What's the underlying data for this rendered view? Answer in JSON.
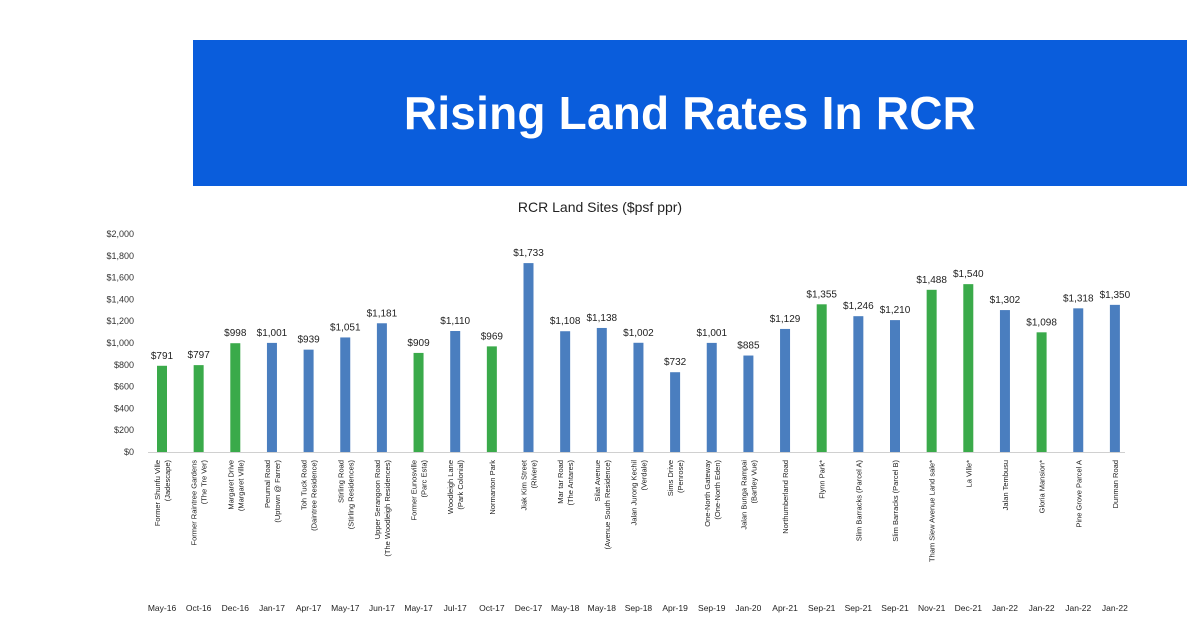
{
  "banner": {
    "title": "Rising Land Rates In RCR"
  },
  "chart_data": {
    "type": "bar",
    "title": "RCR Land Sites ($psf ppr)",
    "ylim": [
      0,
      2000
    ],
    "yticks": [
      "$0",
      "$200",
      "$400",
      "$600",
      "$800",
      "$1,000",
      "$1,200",
      "$1,400",
      "$1,600",
      "$1,800",
      "$2,000"
    ],
    "grid": false,
    "colors": {
      "blue": "#4a7ebf",
      "green": "#3aaa4a"
    },
    "bars": [
      {
        "name": "Former Shunfu Ville",
        "sub": "(Jadescape)",
        "date": "May-16",
        "value": 791,
        "label": "$791",
        "color": "green"
      },
      {
        "name": "Former Raintree Gardens",
        "sub": "(The Tre Ver)",
        "date": "Oct-16",
        "value": 797,
        "label": "$797",
        "color": "green"
      },
      {
        "name": "Margaret Drive",
        "sub": "(Margaret Ville)",
        "date": "Dec-16",
        "value": 998,
        "label": "$998",
        "color": "green"
      },
      {
        "name": "Perumal Road",
        "sub": "(Uptown @ Farrer)",
        "date": "Jan-17",
        "value": 1001,
        "label": "$1,001",
        "color": "blue"
      },
      {
        "name": "Toh Tuck Road",
        "sub": "(Daintree Residence)",
        "date": "Apr-17",
        "value": 939,
        "label": "$939",
        "color": "blue"
      },
      {
        "name": "Stirling Road",
        "sub": "(Stirling Residences)",
        "date": "May-17",
        "value": 1051,
        "label": "$1,051",
        "color": "blue"
      },
      {
        "name": "Upper Serangoon Road",
        "sub": "(The Woodleigh Residences)",
        "date": "Jun-17",
        "value": 1181,
        "label": "$1,181",
        "color": "blue"
      },
      {
        "name": "Former Eunosville",
        "sub": "(Parc Esta)",
        "date": "May-17",
        "value": 909,
        "label": "$909",
        "color": "green"
      },
      {
        "name": "Woodleigh Lane",
        "sub": "(Park Colonial)",
        "date": "Jul-17",
        "value": 1110,
        "label": "$1,110",
        "color": "blue"
      },
      {
        "name": "Normanton Park",
        "sub": "",
        "date": "Oct-17",
        "value": 969,
        "label": "$969",
        "color": "green"
      },
      {
        "name": "Jiak Kim Street",
        "sub": "(Riviere)",
        "date": "Dec-17",
        "value": 1733,
        "label": "$1,733",
        "color": "blue"
      },
      {
        "name": "Mar tar Road",
        "sub": "(The Antares)",
        "date": "May-18",
        "value": 1108,
        "label": "$1,108",
        "color": "blue"
      },
      {
        "name": "Silat Avenue",
        "sub": "(Avenue South Residence)",
        "date": "May-18",
        "value": 1138,
        "label": "$1,138",
        "color": "blue"
      },
      {
        "name": "Jalan Jurong Kechil",
        "sub": "(Verdale)",
        "date": "Sep-18",
        "value": 1002,
        "label": "$1,002",
        "color": "blue"
      },
      {
        "name": "Sims Drive",
        "sub": "(Penrose)",
        "date": "Apr-19",
        "value": 732,
        "label": "$732",
        "color": "blue"
      },
      {
        "name": "One-North Gateway",
        "sub": "(One-North Eden)",
        "date": "Sep-19",
        "value": 1001,
        "label": "$1,001",
        "color": "blue"
      },
      {
        "name": "Jalan Bunga Rampai",
        "sub": "(Bartley Vue)",
        "date": "Jan-20",
        "value": 885,
        "label": "$885",
        "color": "blue"
      },
      {
        "name": "Northumberland Road",
        "sub": "",
        "date": "Apr-21",
        "value": 1129,
        "label": "$1,129",
        "color": "blue"
      },
      {
        "name": "Flynn Park*",
        "sub": "",
        "date": "Sep-21",
        "value": 1355,
        "label": "$1,355",
        "color": "green"
      },
      {
        "name": "Slim Barracks (Parcel A)",
        "sub": "",
        "date": "Sep-21",
        "value": 1246,
        "label": "$1,246",
        "color": "blue"
      },
      {
        "name": "Slim Barracks (Parcel B)",
        "sub": "",
        "date": "Sep-21",
        "value": 1210,
        "label": "$1,210",
        "color": "blue"
      },
      {
        "name": "Tham Siew Avenue Land sale*",
        "sub": "",
        "date": "Nov-21",
        "value": 1488,
        "label": "$1,488",
        "color": "green"
      },
      {
        "name": "La Ville*",
        "sub": "",
        "date": "Dec-21",
        "value": 1540,
        "label": "$1,540",
        "color": "green"
      },
      {
        "name": "Jalan Tembusu",
        "sub": "",
        "date": "Jan-22",
        "value": 1302,
        "label": "$1,302",
        "color": "blue"
      },
      {
        "name": "Gloria Mansion*",
        "sub": "",
        "date": "Jan-22",
        "value": 1098,
        "label": "$1,098",
        "color": "green"
      },
      {
        "name": "Pine Grove Parcel A",
        "sub": "",
        "date": "Jan-22",
        "value": 1318,
        "label": "$1,318",
        "color": "blue"
      },
      {
        "name": "Dunman Road",
        "sub": "",
        "date": "Jan-22",
        "value": 1350,
        "label": "$1,350",
        "color": "blue"
      }
    ]
  }
}
